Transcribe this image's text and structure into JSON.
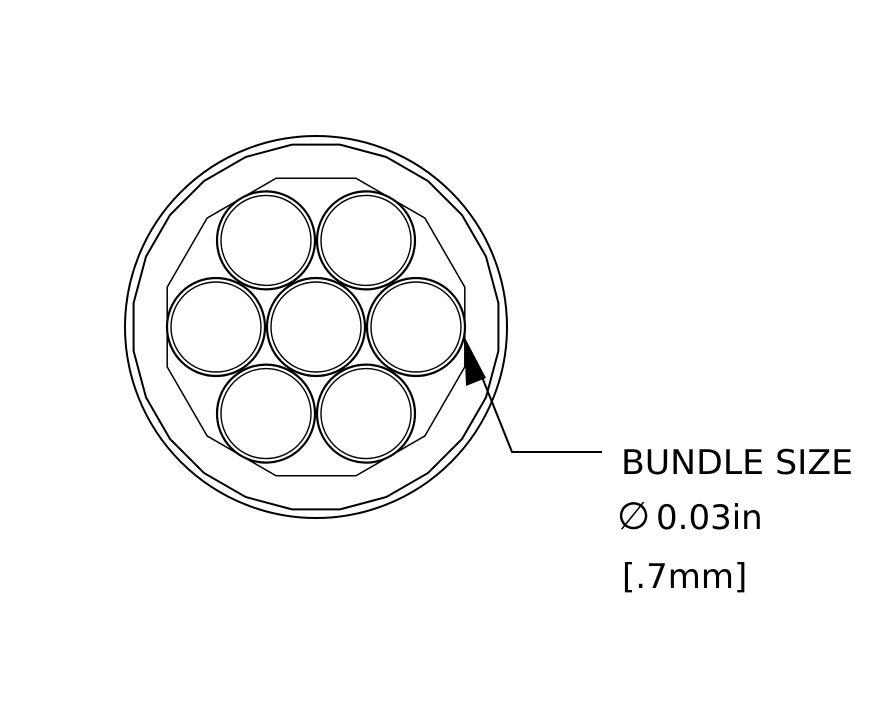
{
  "diagram": {
    "label_title": "BUNDLE SIZE",
    "diameter_symbol": "∅",
    "diameter_imperial": "0.03in",
    "diameter_metric": "[.7mm]",
    "fiber_count": 7,
    "line_color": "#000000",
    "background_color": "#ffffff"
  }
}
